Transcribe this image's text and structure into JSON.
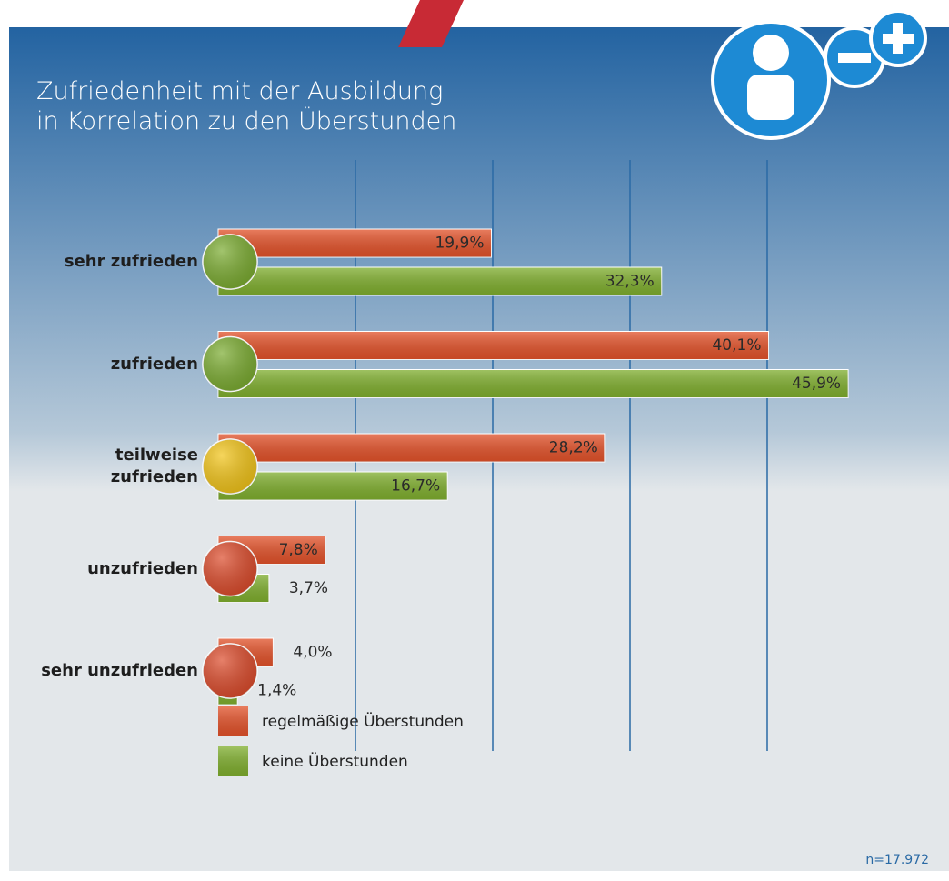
{
  "chart_data": {
    "type": "hbar",
    "title": "Zufriedenheit mit der Ausbildung\nin Korrelation zu den Überstunden",
    "categories": [
      "sehr zufrieden",
      "zufrieden",
      "teilweise\nzufrieden",
      "unzufrieden",
      "sehr unzufrieden"
    ],
    "marker_colors": [
      "#7aab2f",
      "#7aab2f",
      "#f2c417",
      "#dc4a2a",
      "#dc4a2a"
    ],
    "series": [
      {
        "name": "regelmäßige Überstunden",
        "color": "#e2522a",
        "values": [
          19.9,
          40.1,
          28.2,
          7.8,
          4.0
        ],
        "value_labels": [
          "19,9%",
          "40,1%",
          "28,2%",
          "7,8%",
          "4,0%"
        ]
      },
      {
        "name": "keine Überstunden",
        "color": "#7fae2e",
        "values": [
          32.3,
          45.9,
          16.7,
          3.7,
          1.4
        ],
        "value_labels": [
          "32,3%",
          "45,9%",
          "16,7%",
          "3,7%",
          "1,4%"
        ]
      }
    ],
    "xlim": [
      0,
      50
    ],
    "xticks": [
      10,
      20,
      30,
      40
    ],
    "grid": true,
    "note": "n=17.972"
  }
}
